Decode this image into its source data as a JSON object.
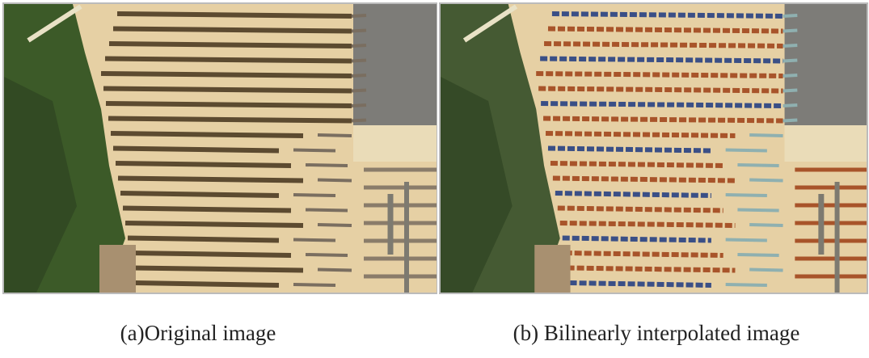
{
  "figure": {
    "panels": [
      {
        "caption": "(a)Original image"
      },
      {
        "caption": "(b) Bilinearly interpolated image"
      }
    ]
  }
}
